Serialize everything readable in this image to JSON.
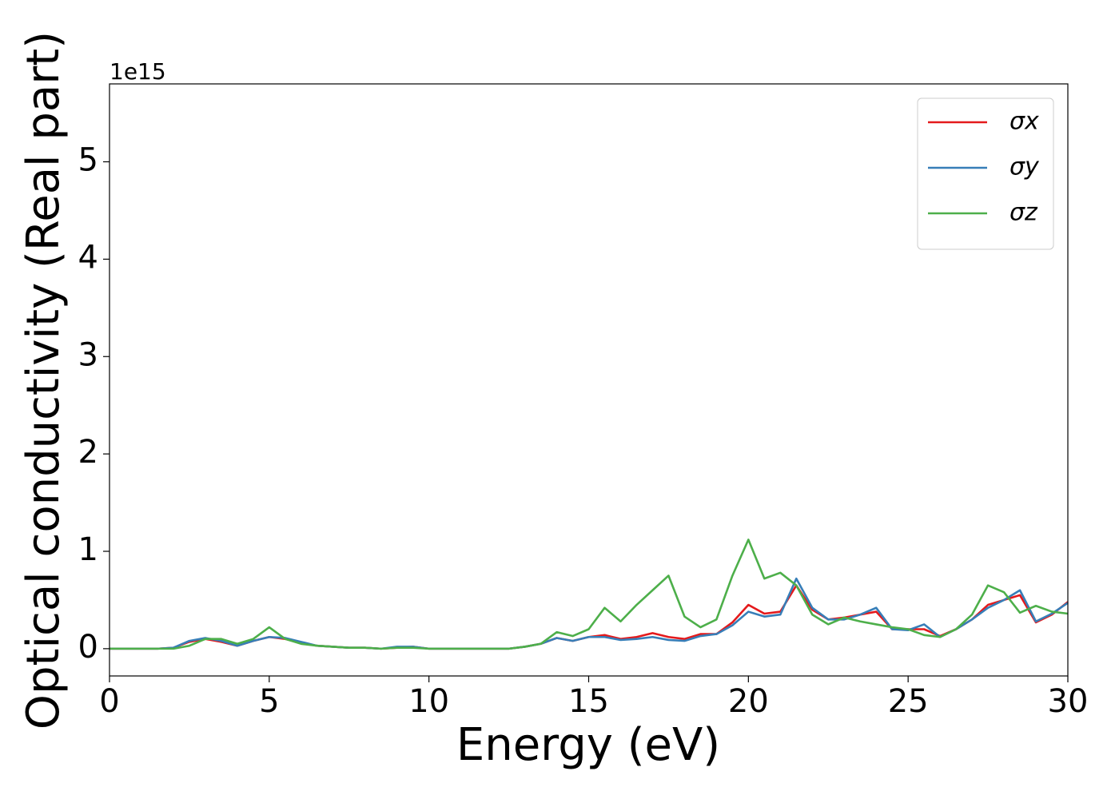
{
  "chart_data": {
    "type": "line",
    "xlabel": "Energy (eV)",
    "ylabel": "Optical conductivity (Real part)",
    "y_offset_label": "1e15",
    "xlim": [
      0,
      30
    ],
    "ylim": [
      -0.28,
      5.8
    ],
    "xticks": [
      0,
      5,
      10,
      15,
      20,
      25,
      30
    ],
    "yticks": [
      0,
      1,
      2,
      3,
      4,
      5
    ],
    "grid": false,
    "legend": "upper right",
    "x": [
      0,
      0.5,
      1,
      1.5,
      2,
      2.5,
      3,
      3.5,
      4,
      4.5,
      5,
      5.5,
      6,
      6.5,
      7,
      7.5,
      8,
      8.5,
      9,
      9.5,
      10,
      10.5,
      11,
      11.5,
      12,
      12.5,
      13,
      13.5,
      14,
      14.5,
      15,
      15.5,
      16,
      16.5,
      17,
      17.5,
      18,
      18.5,
      19,
      19.5,
      20,
      20.5,
      21,
      21.5,
      22,
      22.5,
      23,
      23.5,
      24,
      24.5,
      25,
      25.5,
      26,
      26.5,
      27,
      27.5,
      28,
      28.5,
      29,
      29.5,
      30
    ],
    "series": [
      {
        "name": "σx",
        "color": "#e41a1c",
        "values": [
          0,
          0,
          0,
          0,
          0.01,
          0.07,
          0.1,
          0.07,
          0.03,
          0.08,
          0.12,
          0.1,
          0.06,
          0.03,
          0.02,
          0.01,
          0.01,
          0,
          0.01,
          0.02,
          0,
          0,
          0,
          0,
          0,
          0,
          0.02,
          0.05,
          0.11,
          0.08,
          0.12,
          0.14,
          0.1,
          0.12,
          0.16,
          0.12,
          0.1,
          0.15,
          0.15,
          0.27,
          0.45,
          0.36,
          0.38,
          0.65,
          0.4,
          0.3,
          0.32,
          0.35,
          0.38,
          0.2,
          0.2,
          0.2,
          0.13,
          0.2,
          0.3,
          0.45,
          0.5,
          0.55,
          0.27,
          0.35,
          0.48
        ]
      },
      {
        "name": "σy",
        "color": "#377eb8",
        "values": [
          0,
          0,
          0,
          0,
          0.01,
          0.08,
          0.11,
          0.08,
          0.03,
          0.08,
          0.12,
          0.11,
          0.07,
          0.03,
          0.02,
          0.01,
          0.01,
          0,
          0.02,
          0.02,
          0,
          0,
          0,
          0,
          0,
          0,
          0.02,
          0.05,
          0.11,
          0.08,
          0.12,
          0.12,
          0.09,
          0.1,
          0.12,
          0.09,
          0.08,
          0.13,
          0.15,
          0.24,
          0.38,
          0.33,
          0.35,
          0.72,
          0.42,
          0.3,
          0.3,
          0.35,
          0.42,
          0.2,
          0.19,
          0.25,
          0.12,
          0.2,
          0.3,
          0.42,
          0.5,
          0.6,
          0.28,
          0.36,
          0.47
        ]
      },
      {
        "name": "σz",
        "color": "#4daf4a",
        "values": [
          0,
          0,
          0,
          0,
          0,
          0.03,
          0.1,
          0.1,
          0.05,
          0.1,
          0.22,
          0.1,
          0.05,
          0.03,
          0.02,
          0.01,
          0.01,
          0,
          0.01,
          0.01,
          0,
          0,
          0,
          0,
          0,
          0,
          0.02,
          0.05,
          0.17,
          0.13,
          0.2,
          0.42,
          0.28,
          0.45,
          0.6,
          0.75,
          0.33,
          0.22,
          0.3,
          0.75,
          1.12,
          0.72,
          0.78,
          0.65,
          0.35,
          0.25,
          0.32,
          0.28,
          0.25,
          0.22,
          0.2,
          0.14,
          0.12,
          0.2,
          0.35,
          0.65,
          0.58,
          0.37,
          0.44,
          0.38,
          0.36
        ]
      }
    ]
  }
}
